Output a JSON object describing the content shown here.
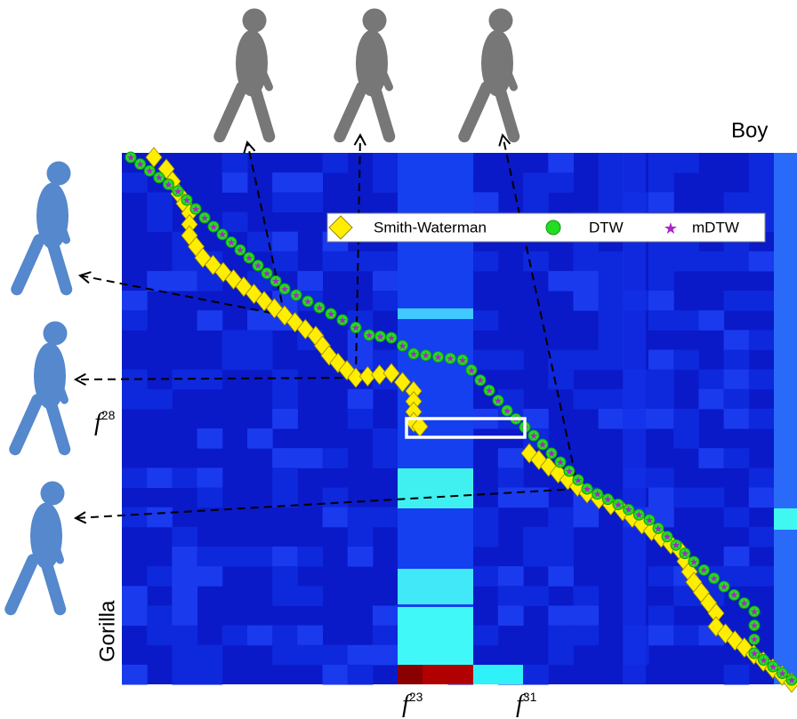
{
  "figure": {
    "top_label": "Boy",
    "side_label": "Gorilla",
    "legend": [
      "Smith-Waterman",
      "DTW",
      "mDTW"
    ],
    "frame_labels": [
      {
        "base": "f",
        "sup": "23"
      },
      {
        "base": "f",
        "sup": "31"
      },
      {
        "base": "f",
        "sup": "28"
      }
    ]
  }
}
